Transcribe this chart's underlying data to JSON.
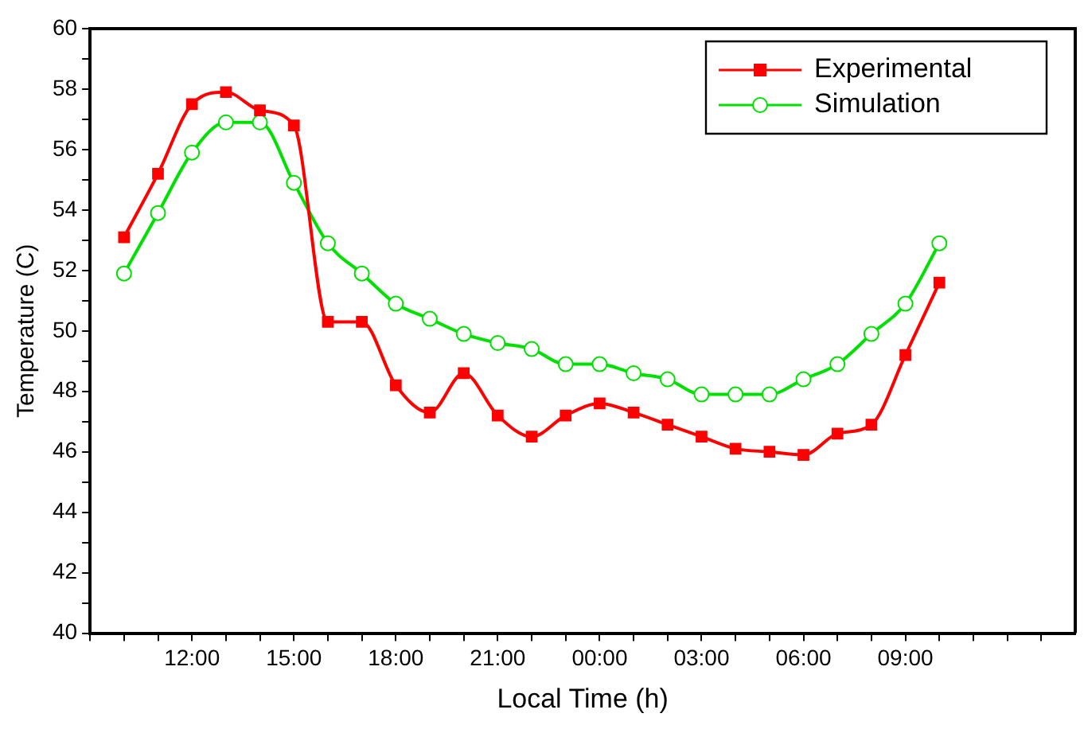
{
  "chart_data": {
    "type": "line",
    "xlabel": "Local Time (h)",
    "ylabel": "Temperature (C)",
    "x": [
      "2000-01-01T10:00",
      "2000-01-01T11:00",
      "2000-01-01T12:00",
      "2000-01-01T13:00",
      "2000-01-01T14:00",
      "2000-01-01T15:00",
      "2000-01-01T16:00",
      "2000-01-01T17:00",
      "2000-01-01T18:00",
      "2000-01-01T19:00",
      "2000-01-01T20:00",
      "2000-01-01T21:00",
      "2000-01-01T22:00",
      "2000-01-01T23:00",
      "2000-01-02T00:00",
      "2000-01-02T01:00",
      "2000-01-02T02:00",
      "2000-01-02T03:00",
      "2000-01-02T04:00",
      "2000-01-02T05:00",
      "2000-01-02T06:00",
      "2000-01-02T07:00",
      "2000-01-02T08:00",
      "2000-01-02T09:00",
      "2000-01-02T10:00"
    ],
    "series": [
      {
        "name": "Experimental",
        "color": "#ff0000",
        "marker": "square",
        "values": [
          53.1,
          55.2,
          57.5,
          57.9,
          57.3,
          56.8,
          50.3,
          50.3,
          48.2,
          47.3,
          48.6,
          47.2,
          46.5,
          47.2,
          47.6,
          47.3,
          46.9,
          46.5,
          46.1,
          46.0,
          45.9,
          46.6,
          46.9,
          49.2,
          51.6
        ]
      },
      {
        "name": "Simulation",
        "color": "#00e000",
        "marker": "circle",
        "values": [
          51.9,
          53.9,
          55.9,
          56.9,
          56.9,
          54.9,
          52.9,
          51.9,
          50.9,
          50.4,
          49.9,
          49.6,
          49.4,
          48.9,
          48.9,
          48.6,
          48.4,
          47.9,
          47.9,
          47.9,
          48.4,
          48.9,
          49.9,
          50.9,
          52.9
        ]
      }
    ],
    "xlim": [
      "2000-01-01T09:00",
      "2000-01-02T14:00"
    ],
    "xticks": [
      {
        "value": "2000-01-01T09:00",
        "label": null
      },
      {
        "value": "2000-01-01T10:00",
        "label": null
      },
      {
        "value": "2000-01-01T11:00",
        "label": null
      },
      {
        "value": "2000-01-01T12:00",
        "label": "12:00"
      },
      {
        "value": "2000-01-01T13:00",
        "label": null
      },
      {
        "value": "2000-01-01T14:00",
        "label": null
      },
      {
        "value": "2000-01-01T15:00",
        "label": "15:00"
      },
      {
        "value": "2000-01-01T16:00",
        "label": null
      },
      {
        "value": "2000-01-01T17:00",
        "label": null
      },
      {
        "value": "2000-01-01T18:00",
        "label": "18:00"
      },
      {
        "value": "2000-01-01T19:00",
        "label": null
      },
      {
        "value": "2000-01-01T20:00",
        "label": null
      },
      {
        "value": "2000-01-01T21:00",
        "label": "21:00"
      },
      {
        "value": "2000-01-01T22:00",
        "label": null
      },
      {
        "value": "2000-01-01T23:00",
        "label": null
      },
      {
        "value": "2000-01-02T00:00",
        "label": "00:00"
      },
      {
        "value": "2000-01-02T01:00",
        "label": null
      },
      {
        "value": "2000-01-02T02:00",
        "label": null
      },
      {
        "value": "2000-01-02T03:00",
        "label": "03:00"
      },
      {
        "value": "2000-01-02T04:00",
        "label": null
      },
      {
        "value": "2000-01-02T05:00",
        "label": null
      },
      {
        "value": "2000-01-02T06:00",
        "label": "06:00"
      },
      {
        "value": "2000-01-02T07:00",
        "label": null
      },
      {
        "value": "2000-01-02T08:00",
        "label": null
      },
      {
        "value": "2000-01-02T09:00",
        "label": "09:00"
      },
      {
        "value": "2000-01-02T10:00",
        "label": null
      },
      {
        "value": "2000-01-02T11:00",
        "label": null
      },
      {
        "value": "2000-01-02T12:00",
        "label": null
      },
      {
        "value": "2000-01-02T13:00",
        "label": null
      }
    ],
    "ylim": [
      40,
      60
    ],
    "yticks": [
      40,
      {
        "value": 41,
        "label": null
      },
      42,
      {
        "value": 43,
        "label": null
      },
      44,
      {
        "value": 45,
        "label": null
      },
      46,
      {
        "value": 47,
        "label": null
      },
      48,
      {
        "value": 49,
        "label": null
      },
      50,
      {
        "value": 51,
        "label": null
      },
      52,
      {
        "value": 53,
        "label": null
      },
      54,
      {
        "value": 55,
        "label": null
      },
      56,
      {
        "value": 57,
        "label": null
      },
      58,
      {
        "value": 59,
        "label": null
      },
      60
    ],
    "grid": false,
    "legend": "top right",
    "line_style": "solid"
  }
}
